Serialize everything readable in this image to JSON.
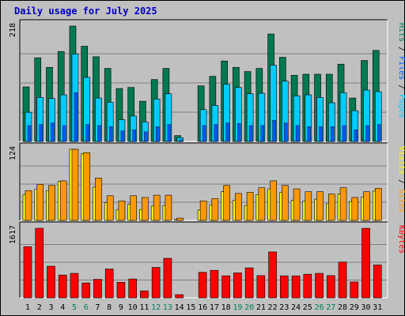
{
  "title": "Daily usage for July 2025",
  "colors": {
    "hits": "#007850",
    "files": "#00ccff",
    "pages": "#0059ff",
    "visits": "#ffff00",
    "sites": "#ff9900",
    "kbytes": "#ff0000",
    "weekend_label": "#008060",
    "weekday_label": "#000000"
  },
  "panels": {
    "hits": {
      "max_label": "218",
      "legend": [
        {
          "text": "Pages",
          "color": "#00ccff"
        },
        {
          "text": " / ",
          "color": "#000000"
        },
        {
          "text": "Files",
          "color": "#0059ff"
        },
        {
          "text": " / ",
          "color": "#000000"
        },
        {
          "text": "Hits",
          "color": "#007850"
        }
      ]
    },
    "visits": {
      "max_label": "124",
      "legend": [
        {
          "text": "Sites",
          "color": "#ff9900"
        },
        {
          "text": " / ",
          "color": "#000000"
        },
        {
          "text": "Visits",
          "color": "#ffff00"
        }
      ]
    },
    "kbytes": {
      "max_label": "1617",
      "legend": [
        {
          "text": "KBytes",
          "color": "#ff0000"
        }
      ]
    }
  },
  "chart_data": {
    "type": "bar",
    "title": "Daily usage for July 2025",
    "categories": [
      "1",
      "2",
      "3",
      "4",
      "5",
      "6",
      "7",
      "8",
      "9",
      "10",
      "11",
      "12",
      "13",
      "14",
      "15",
      "16",
      "17",
      "18",
      "19",
      "20",
      "21",
      "22",
      "23",
      "24",
      "25",
      "26",
      "27",
      "28",
      "29",
      "30",
      "31"
    ],
    "weekend_days": [
      "5",
      "6",
      "12",
      "13",
      "19",
      "20",
      "26",
      "27"
    ],
    "series": [
      {
        "name": "Hits",
        "panel": "hits",
        "values": [
          103,
          158,
          140,
          170,
          218,
          180,
          160,
          138,
          100,
          102,
          76,
          117,
          138,
          11,
          0,
          105,
          123,
          152,
          140,
          132,
          138,
          203,
          159,
          125,
          127,
          127,
          127,
          146,
          82,
          153,
          172
        ]
      },
      {
        "name": "Files",
        "panel": "hits",
        "values": [
          55,
          83,
          81,
          88,
          165,
          121,
          82,
          74,
          41,
          48,
          37,
          80,
          90,
          7,
          0,
          60,
          68,
          108,
          102,
          90,
          91,
          144,
          114,
          86,
          88,
          83,
          73,
          92,
          58,
          97,
          94
        ]
      },
      {
        "name": "Pages",
        "panel": "hits",
        "values": [
          30,
          32,
          35,
          30,
          92,
          32,
          30,
          28,
          20,
          22,
          18,
          28,
          32,
          3,
          0,
          30,
          32,
          35,
          34,
          30,
          30,
          40,
          35,
          30,
          28,
          28,
          28,
          30,
          22,
          30,
          32
        ]
      },
      {
        "name": "Sites",
        "panel": "visits",
        "values": [
          52,
          63,
          61,
          69,
          124,
          118,
          74,
          43,
          34,
          43,
          40,
          44,
          44,
          4,
          0,
          34,
          38,
          61,
          47,
          49,
          57,
          69,
          61,
          55,
          50,
          50,
          46,
          57,
          40,
          50,
          56
        ]
      },
      {
        "name": "Visits",
        "panel": "visits",
        "values": [
          45,
          54,
          52,
          68,
          124,
          116,
          58,
          31,
          19,
          28,
          19,
          25,
          26,
          2,
          0,
          18,
          27,
          50,
          35,
          26,
          45,
          55,
          49,
          35,
          34,
          37,
          29,
          46,
          33,
          41,
          51
        ]
      },
      {
        "name": "KBytes",
        "panel": "kbytes",
        "values": [
          1190,
          1617,
          735,
          530,
          569,
          346,
          431,
          671,
          361,
          439,
          162,
          707,
          919,
          74,
          0,
          594,
          639,
          512,
          580,
          697,
          517,
          1068,
          512,
          511,
          549,
          569,
          517,
          833,
          369,
          1617,
          766
        ]
      }
    ],
    "ylim_hits": [
      0,
      218
    ],
    "ylim_visits": [
      0,
      124
    ],
    "ylim_kbytes": [
      0,
      1617
    ]
  }
}
